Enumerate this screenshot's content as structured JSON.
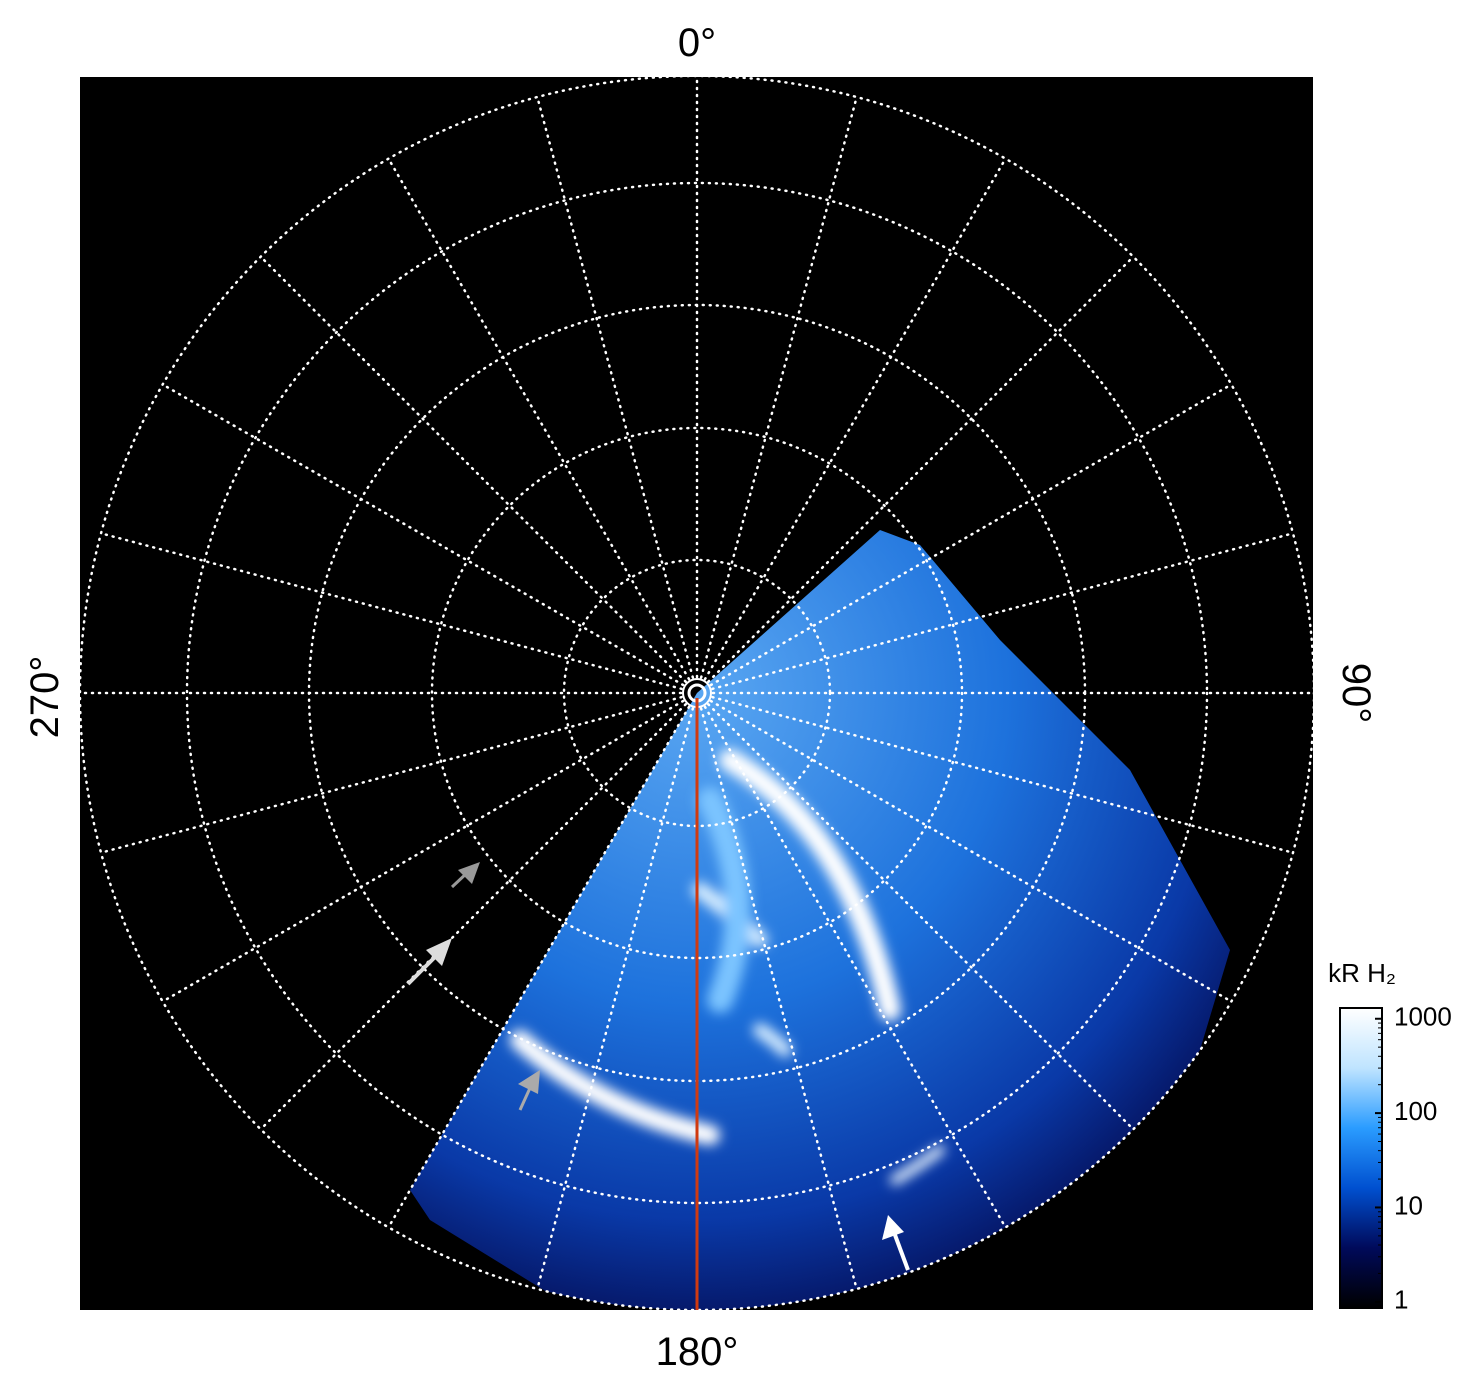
{
  "chart_data": {
    "type": "polar-image",
    "angle_labels": {
      "top": "0°",
      "right": "90°",
      "bottom": "180°",
      "left": "270°"
    },
    "colorbar": {
      "title": "kR H₂",
      "scale": "log",
      "lim": [
        0.86,
        1300
      ],
      "ticks": [
        1,
        10,
        100,
        1000
      ],
      "colors": [
        "#000000",
        "#000a5a",
        "#0050d0",
        "#2a9cff",
        "#bfe4ff",
        "#ffffff"
      ]
    },
    "meridian_color": "#d03a10"
  }
}
